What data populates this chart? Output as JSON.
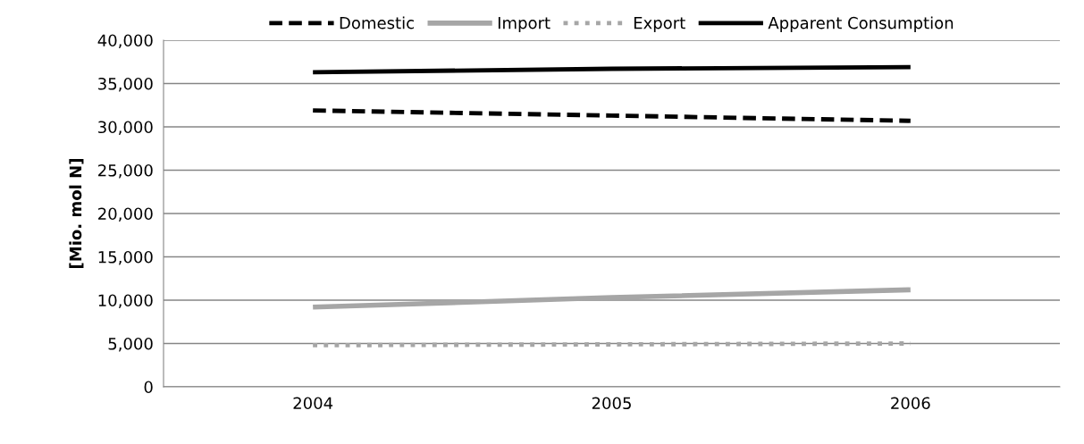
{
  "chart_data": {
    "type": "line",
    "ylabel": "[Mio. mol N]",
    "categories": [
      "2004",
      "2005",
      "2006"
    ],
    "series": [
      {
        "name": "Domestic",
        "color": "#000000",
        "line_style": "dashed",
        "values": [
          31900,
          31300,
          30700
        ]
      },
      {
        "name": "Import",
        "color": "#a6a6a6",
        "line_style": "solid",
        "values": [
          9200,
          10300,
          11200
        ]
      },
      {
        "name": "Export",
        "color": "#a6a6a6",
        "line_style": "dotted",
        "values": [
          4800,
          4900,
          5000
        ]
      },
      {
        "name": "Apparent Consumption",
        "color": "#000000",
        "line_style": "solid",
        "values": [
          36300,
          36700,
          36900
        ]
      }
    ],
    "ylim": [
      0,
      40000
    ],
    "yticks": [
      {
        "value": 0,
        "label": "0"
      },
      {
        "value": 5000,
        "label": "5,000"
      },
      {
        "value": 10000,
        "label": "10,000"
      },
      {
        "value": 15000,
        "label": "15,000"
      },
      {
        "value": 20000,
        "label": "20,000"
      },
      {
        "value": 25000,
        "label": "25,000"
      },
      {
        "value": 30000,
        "label": "30,000"
      },
      {
        "value": 35000,
        "label": "35,000"
      },
      {
        "value": 40000,
        "label": "40,000"
      }
    ],
    "grid": "y",
    "legend": "top",
    "marker": "none"
  }
}
